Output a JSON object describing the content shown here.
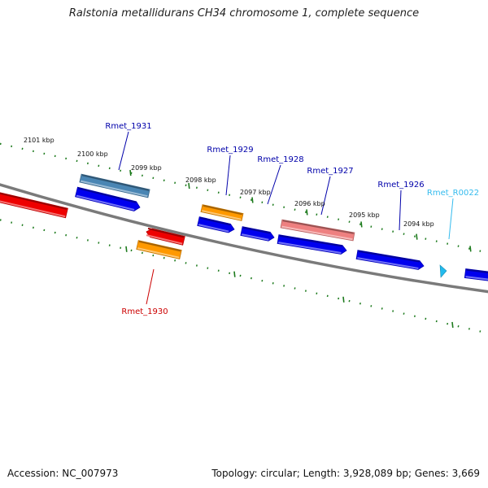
{
  "title": "Ralstonia metallidurans CH34 chromosome 1, complete sequence",
  "footer": {
    "accession": "Accession: NC_007973",
    "topology": "Topology: circular; Length: 3,928,089 bp; Genes: 3,669"
  },
  "colors": {
    "backbone": "#7a7a7a",
    "tick": "#1c7a1c",
    "label_blue": "#0000aa",
    "label_red": "#cc0000",
    "label_cyan": "#33bbee",
    "cds_blue": "#0000ee",
    "cds_red": "#ee0000",
    "cds_orange": "#ff9900",
    "cds_steel": "#4a86b4",
    "cds_pink": "#ee8080",
    "rna_cyan": "#22bbee"
  },
  "ticks": [
    "2101 kbp",
    "2100 kbp",
    "2099 kbp",
    "2098 kbp",
    "2097 kbp",
    "2096 kbp",
    "2095 kbp",
    "2094 kbp"
  ],
  "genes": [
    {
      "name": "Rmet_1931",
      "color": "label_blue"
    },
    {
      "name": "Rmet_1929",
      "color": "label_blue"
    },
    {
      "name": "Rmet_1928",
      "color": "label_blue"
    },
    {
      "name": "Rmet_1927",
      "color": "label_blue"
    },
    {
      "name": "Rmet_1926",
      "color": "label_blue"
    },
    {
      "name": "Rmet_R0022",
      "color": "label_cyan"
    },
    {
      "name": "Rmet_1930",
      "color": "label_red"
    }
  ],
  "features": [
    {
      "name": "gene-block-left-red",
      "color": "cds_red"
    },
    {
      "name": "gene-block-rmet1931-upper",
      "color": "cds_steel"
    },
    {
      "name": "gene-block-rmet1931-lower",
      "color": "cds_blue"
    },
    {
      "name": "gene-block-rmet1930-upper",
      "color": "cds_red"
    },
    {
      "name": "gene-block-rmet1930-lower",
      "color": "cds_orange"
    },
    {
      "name": "gene-block-rmet1929-upper",
      "color": "cds_orange"
    },
    {
      "name": "gene-block-rmet1929-lower",
      "color": "cds_blue"
    },
    {
      "name": "gene-block-rmet1928",
      "color": "cds_blue"
    },
    {
      "name": "gene-block-rmet1927-upper",
      "color": "cds_pink"
    },
    {
      "name": "gene-block-rmet1927-lower",
      "color": "cds_blue"
    },
    {
      "name": "gene-block-rmet1926",
      "color": "cds_blue"
    },
    {
      "name": "gene-block-rmetr0022",
      "color": "rna_cyan"
    },
    {
      "name": "gene-block-right-edge",
      "color": "cds_blue"
    }
  ]
}
